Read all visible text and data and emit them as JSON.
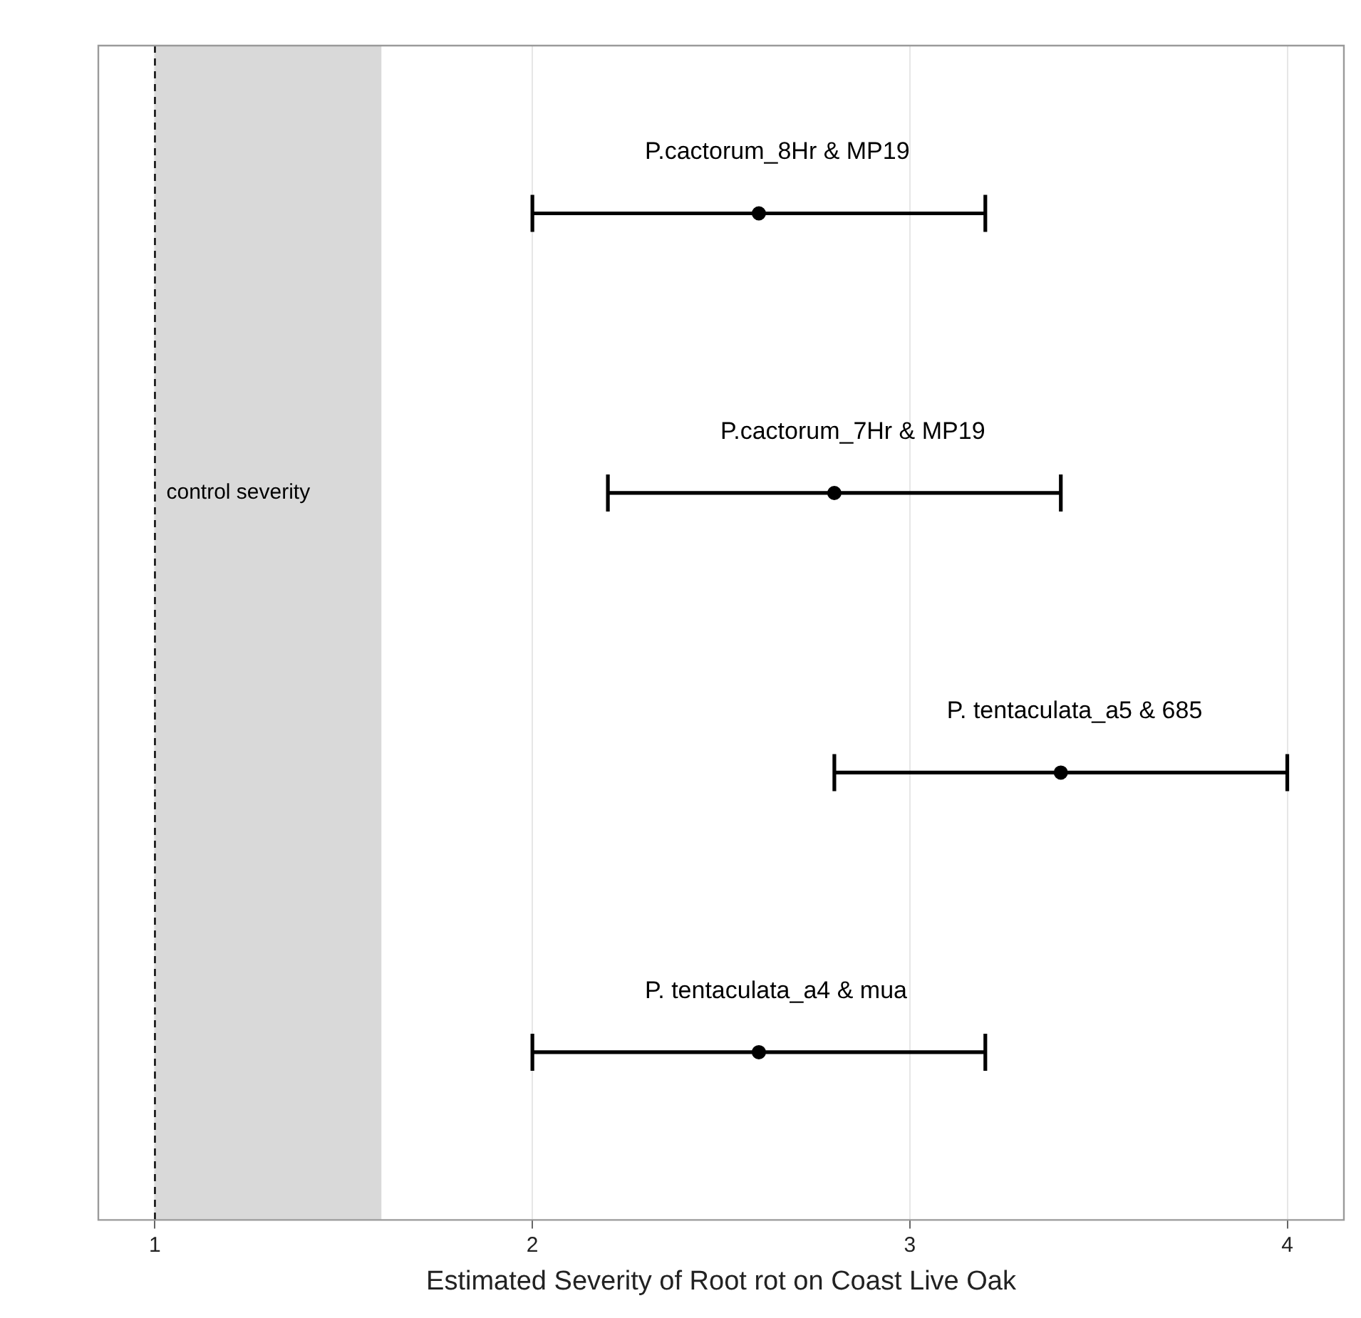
{
  "chart_data": {
    "type": "scatter",
    "orientation": "horizontal",
    "categories": [
      "P.cactorum_8Hr & MP19",
      "P.cactorum_7Hr & MP19",
      "P. tentaculata_a5 & 685",
      "P. tentaculata_a4 & mua"
    ],
    "values": [
      2.6,
      2.8,
      3.4,
      2.6
    ],
    "errors": [
      [
        2.0,
        3.2
      ],
      [
        2.2,
        3.4
      ],
      [
        2.8,
        4.0
      ],
      [
        2.0,
        3.2
      ]
    ],
    "color": "#000000",
    "marker": "circle",
    "xlabel": "Estimated Severity of Root rot on Coast Live Oak",
    "xlim": [
      0.85,
      4.15
    ],
    "xticks": [
      1,
      2,
      3,
      4
    ],
    "grid": "x",
    "tick_labels": "x",
    "ref_lines": [
      {
        "axis": "x",
        "value": 1,
        "line_style": "dashed",
        "color": "#000000"
      }
    ],
    "bands": [
      {
        "axis": "x",
        "from": 1,
        "to": 1.6,
        "label": "control severity",
        "color": "#d9d9d9"
      }
    ]
  }
}
